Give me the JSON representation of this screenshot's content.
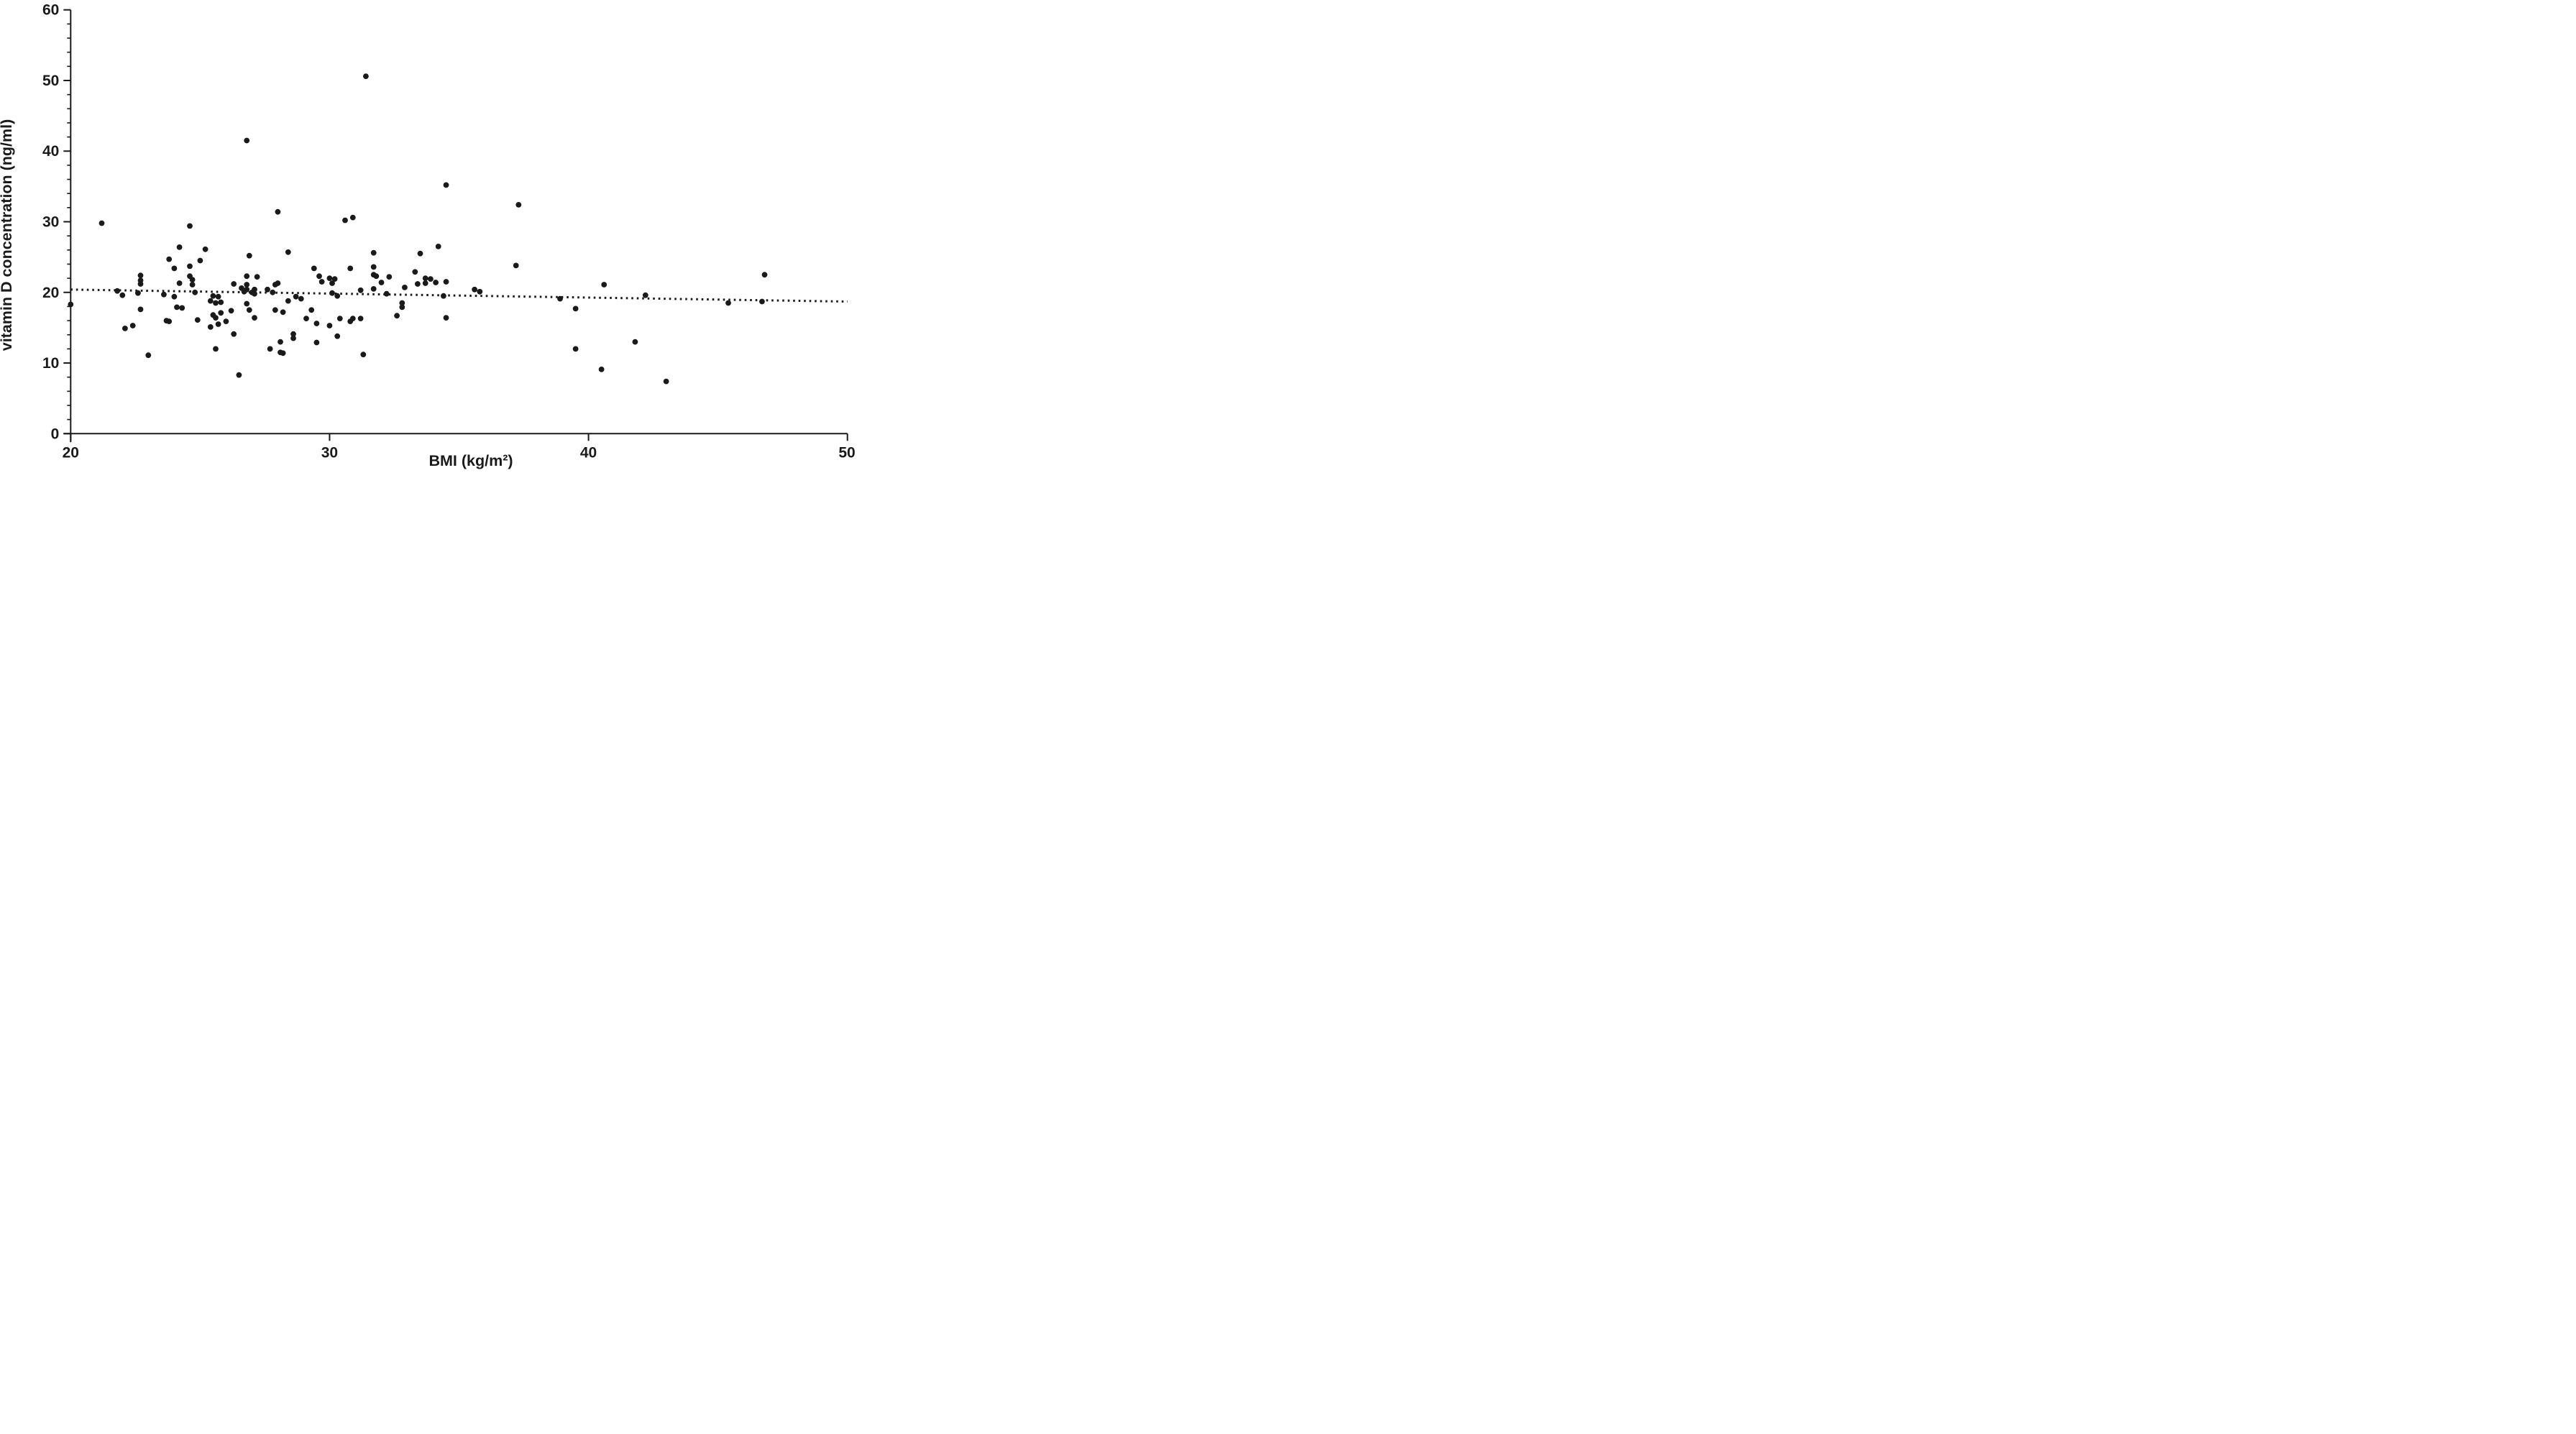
{
  "chart_data": {
    "type": "scatter",
    "title": "",
    "xlabel": "BMI (kg/m²)",
    "ylabel": "vitamin D concentration (ng/ml)",
    "xlim": [
      20,
      50
    ],
    "ylim": [
      0,
      60
    ],
    "x_ticks": [
      20,
      30,
      40,
      50
    ],
    "y_ticks": [
      0,
      10,
      20,
      30,
      40,
      50,
      60
    ],
    "y_minor_tick_step": 2,
    "grid": "off",
    "legend": "none",
    "marker_color": "#1a1a1a",
    "trend_line": {
      "style": "dotted",
      "x1": 20,
      "y1": 20.4,
      "x2": 50,
      "y2": 18.7
    },
    "points": [
      [
        20.0,
        18.3
      ],
      [
        21.2,
        29.8
      ],
      [
        24.6,
        29.4
      ],
      [
        28.0,
        31.4
      ],
      [
        26.8,
        41.5
      ],
      [
        31.4,
        50.6
      ],
      [
        34.5,
        35.2
      ],
      [
        37.3,
        32.4
      ],
      [
        30.6,
        30.2
      ],
      [
        30.9,
        30.6
      ],
      [
        24.2,
        26.4
      ],
      [
        25.2,
        26.1
      ],
      [
        25.0,
        24.5
      ],
      [
        23.8,
        24.7
      ],
      [
        24.0,
        23.4
      ],
      [
        24.6,
        23.7
      ],
      [
        28.4,
        25.7
      ],
      [
        26.9,
        25.2
      ],
      [
        31.7,
        25.6
      ],
      [
        29.4,
        23.4
      ],
      [
        30.8,
        23.4
      ],
      [
        31.7,
        23.6
      ],
      [
        31.7,
        22.5
      ],
      [
        31.8,
        22.3
      ],
      [
        29.6,
        22.3
      ],
      [
        26.8,
        22.3
      ],
      [
        27.2,
        22.2
      ],
      [
        29.7,
        21.5
      ],
      [
        30.0,
        22.0
      ],
      [
        30.2,
        21.9
      ],
      [
        30.1,
        21.3
      ],
      [
        32.0,
        21.4
      ],
      [
        32.3,
        22.2
      ],
      [
        31.2,
        20.3
      ],
      [
        31.7,
        20.5
      ],
      [
        30.1,
        19.9
      ],
      [
        30.3,
        19.5
      ],
      [
        32.2,
        19.8
      ],
      [
        22.7,
        22.4
      ],
      [
        22.7,
        21.7
      ],
      [
        22.7,
        21.2
      ],
      [
        24.6,
        22.3
      ],
      [
        24.7,
        21.8
      ],
      [
        24.7,
        21.1
      ],
      [
        24.2,
        21.3
      ],
      [
        21.8,
        20.2
      ],
      [
        22.0,
        19.6
      ],
      [
        22.6,
        19.9
      ],
      [
        23.6,
        19.7
      ],
      [
        24.0,
        19.4
      ],
      [
        24.8,
        20.0
      ],
      [
        25.5,
        19.5
      ],
      [
        25.7,
        19.4
      ],
      [
        25.4,
        18.8
      ],
      [
        25.6,
        18.5
      ],
      [
        25.8,
        18.6
      ],
      [
        26.3,
        21.2
      ],
      [
        26.8,
        21.1
      ],
      [
        26.6,
        20.6
      ],
      [
        26.8,
        20.4
      ],
      [
        26.7,
        20.1
      ],
      [
        27.0,
        20.0
      ],
      [
        27.1,
        20.4
      ],
      [
        27.6,
        20.4
      ],
      [
        27.8,
        20.0
      ],
      [
        27.9,
        21.1
      ],
      [
        28.0,
        21.3
      ],
      [
        27.1,
        19.8
      ],
      [
        28.7,
        19.4
      ],
      [
        28.9,
        19.1
      ],
      [
        26.8,
        18.4
      ],
      [
        28.4,
        18.8
      ],
      [
        24.1,
        17.9
      ],
      [
        24.3,
        17.8
      ],
      [
        22.7,
        17.6
      ],
      [
        23.7,
        16.0
      ],
      [
        24.9,
        16.1
      ],
      [
        26.2,
        17.4
      ],
      [
        26.9,
        17.5
      ],
      [
        27.9,
        17.5
      ],
      [
        28.2,
        17.2
      ],
      [
        29.3,
        17.5
      ],
      [
        27.1,
        16.4
      ],
      [
        25.5,
        16.8
      ],
      [
        25.6,
        16.4
      ],
      [
        25.8,
        17.1
      ],
      [
        25.4,
        15.1
      ],
      [
        25.7,
        15.5
      ],
      [
        26.0,
        15.9
      ],
      [
        26.3,
        14.1
      ],
      [
        25.6,
        12.0
      ],
      [
        26.5,
        8.3
      ],
      [
        22.1,
        14.9
      ],
      [
        22.4,
        15.3
      ],
      [
        23.8,
        15.9
      ],
      [
        23.0,
        11.1
      ],
      [
        29.1,
        16.3
      ],
      [
        29.5,
        15.6
      ],
      [
        30.0,
        15.3
      ],
      [
        30.4,
        16.3
      ],
      [
        30.8,
        15.9
      ],
      [
        30.9,
        16.3
      ],
      [
        31.2,
        16.3
      ],
      [
        30.3,
        13.8
      ],
      [
        28.6,
        14.1
      ],
      [
        28.6,
        13.5
      ],
      [
        28.1,
        13.0
      ],
      [
        28.1,
        11.5
      ],
      [
        27.7,
        12.0
      ],
      [
        28.2,
        11.4
      ],
      [
        29.5,
        12.9
      ],
      [
        31.3,
        11.2
      ],
      [
        32.6,
        16.7
      ],
      [
        32.8,
        17.9
      ],
      [
        32.8,
        18.5
      ],
      [
        33.5,
        25.5
      ],
      [
        34.2,
        26.5
      ],
      [
        33.3,
        22.9
      ],
      [
        32.9,
        20.7
      ],
      [
        33.4,
        21.2
      ],
      [
        33.7,
        22.0
      ],
      [
        33.9,
        21.9
      ],
      [
        33.7,
        21.3
      ],
      [
        34.1,
        21.4
      ],
      [
        34.5,
        21.5
      ],
      [
        34.4,
        19.5
      ],
      [
        35.6,
        20.4
      ],
      [
        35.8,
        20.1
      ],
      [
        34.5,
        16.4
      ],
      [
        37.2,
        23.8
      ],
      [
        38.9,
        19.1
      ],
      [
        39.5,
        17.7
      ],
      [
        40.6,
        21.1
      ],
      [
        42.2,
        19.6
      ],
      [
        41.8,
        13.0
      ],
      [
        39.5,
        12.0
      ],
      [
        40.5,
        9.1
      ],
      [
        43.0,
        7.4
      ],
      [
        45.4,
        18.5
      ],
      [
        46.7,
        18.7
      ],
      [
        46.8,
        22.5
      ]
    ]
  }
}
